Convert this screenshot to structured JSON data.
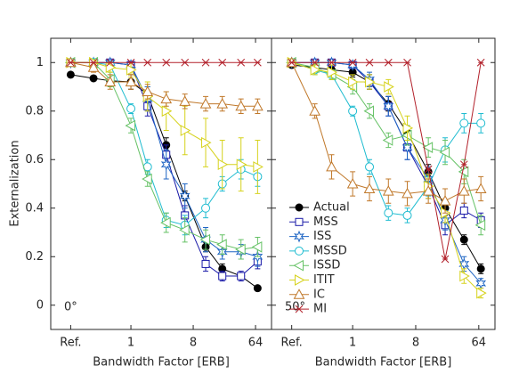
{
  "y_label": "Externalization",
  "chart_data": [
    {
      "type": "line",
      "xlabel": "Bandwidth Factor [ERB]",
      "annotation": "0°",
      "x": [
        -2.9,
        -1.8,
        -1,
        0,
        0.8,
        1.7,
        2.6,
        3.6,
        4.4,
        5.3,
        6.1
      ],
      "xlim": [
        -3.86,
        6.77
      ],
      "xticks": [
        {
          "value": -2.9,
          "label": "Ref."
        },
        {
          "value": 0,
          "label": "1"
        },
        {
          "value": 3,
          "label": "8"
        },
        {
          "value": 6,
          "label": "64"
        }
      ],
      "ylim": [
        -0.1,
        1.1
      ],
      "yticks": [
        0,
        0.2,
        0.4,
        0.6,
        0.8,
        1
      ],
      "series": [
        {
          "color": "#000000",
          "marker": "filled-circle",
          "values": [
            0.95,
            0.935,
            0.925,
            0.92,
            0.87,
            0.66,
            0.45,
            0.24,
            0.15,
            0.12,
            0.07
          ],
          "errors": [
            0.01,
            0.01,
            0.01,
            0.03,
            0.03,
            0.03,
            0.02,
            0.02,
            0.02,
            0.01,
            0.01
          ]
        },
        {
          "color": "#1a1aa8",
          "marker": "square",
          "values": [
            1,
            1,
            1,
            0.99,
            0.82,
            0.62,
            0.37,
            0.17,
            0.12,
            0.12,
            0.18
          ],
          "errors": [
            0,
            0,
            0.01,
            0.01,
            0.04,
            0.04,
            0.04,
            0.03,
            0.02,
            0.02,
            0.03
          ]
        },
        {
          "color": "#1f66c4",
          "marker": "star",
          "values": [
            1,
            1,
            1,
            0.99,
            0.85,
            0.58,
            0.45,
            0.27,
            0.22,
            0.22,
            0.2
          ],
          "errors": [
            0,
            0,
            0.01,
            0.01,
            0.05,
            0.06,
            0.05,
            0.05,
            0.03,
            0.03,
            0.04
          ]
        },
        {
          "color": "#1fbcd0",
          "marker": "circle",
          "values": [
            1,
            1,
            0.99,
            0.81,
            0.57,
            0.35,
            0.33,
            0.4,
            0.5,
            0.56,
            0.53
          ],
          "errors": [
            0,
            0,
            0.01,
            0.02,
            0.03,
            0.03,
            0.04,
            0.04,
            0.03,
            0.04,
            0.04
          ]
        },
        {
          "color": "#66c266",
          "marker": "left-triangle",
          "values": [
            1,
            1,
            0.93,
            0.74,
            0.52,
            0.34,
            0.31,
            0.27,
            0.25,
            0.23,
            0.24
          ],
          "errors": [
            0,
            0.01,
            0.03,
            0.03,
            0.03,
            0.04,
            0.05,
            0.04,
            0.04,
            0.04,
            0.04
          ]
        },
        {
          "color": "#d6d21c",
          "marker": "right-triangle",
          "values": [
            1,
            1,
            0.98,
            0.97,
            0.86,
            0.8,
            0.72,
            0.67,
            0.58,
            0.58,
            0.57
          ],
          "errors": [
            0,
            0.01,
            0.02,
            0.03,
            0.06,
            0.08,
            0.1,
            0.1,
            0.1,
            0.11,
            0.11
          ]
        },
        {
          "color": "#c0782a",
          "marker": "up-triangle",
          "values": [
            1,
            0.98,
            0.92,
            0.92,
            0.88,
            0.85,
            0.84,
            0.83,
            0.83,
            0.82,
            0.82
          ],
          "errors": [
            0.01,
            0.02,
            0.03,
            0.03,
            0.03,
            0.03,
            0.03,
            0.03,
            0.03,
            0.03,
            0.03
          ]
        },
        {
          "color": "#b2202a",
          "marker": "x",
          "values": [
            1,
            1,
            1,
            1,
            1,
            1,
            1,
            1,
            1,
            1,
            1
          ],
          "errors": [
            0,
            0,
            0,
            0,
            0,
            0,
            0,
            0,
            0,
            0,
            0
          ]
        }
      ]
    },
    {
      "type": "line",
      "xlabel": "Bandwidth Factor [ERB]",
      "annotation": "50°",
      "legend": "lower left",
      "x": [
        -2.9,
        -1.8,
        -1,
        0,
        0.8,
        1.7,
        2.6,
        3.6,
        4.4,
        5.3,
        6.1
      ],
      "xlim": [
        -3.86,
        6.77
      ],
      "xticks": [
        {
          "value": -2.9,
          "label": "Ref."
        },
        {
          "value": 0,
          "label": "1"
        },
        {
          "value": 3,
          "label": "8"
        },
        {
          "value": 6,
          "label": "64"
        }
      ],
      "ylim": [
        -0.1,
        1.1
      ],
      "yticks": [
        0,
        0.2,
        0.4,
        0.6,
        0.8,
        1
      ],
      "series": [
        {
          "name": "Actual",
          "color": "#000000",
          "marker": "filled-circle",
          "values": [
            0.99,
            0.98,
            0.97,
            0.96,
            0.92,
            0.83,
            0.71,
            0.55,
            0.4,
            0.27,
            0.15
          ],
          "errors": [
            0.01,
            0.01,
            0.01,
            0.02,
            0.03,
            0.03,
            0.03,
            0.03,
            0.03,
            0.02,
            0.02
          ]
        },
        {
          "name": "MSS",
          "color": "#1a1aa8",
          "marker": "square",
          "values": [
            1,
            1,
            1,
            0.99,
            0.92,
            0.82,
            0.65,
            0.49,
            0.33,
            0.39,
            0.35
          ],
          "errors": [
            0,
            0,
            0.01,
            0.01,
            0.03,
            0.04,
            0.05,
            0.05,
            0.04,
            0.03,
            0.03
          ]
        },
        {
          "name": "ISS",
          "color": "#1f66c4",
          "marker": "star",
          "values": [
            1,
            1,
            1,
            0.99,
            0.93,
            0.82,
            0.65,
            0.52,
            0.35,
            0.17,
            0.09
          ],
          "errors": [
            0,
            0,
            0.01,
            0.01,
            0.03,
            0.04,
            0.05,
            0.05,
            0.04,
            0.03,
            0.02
          ]
        },
        {
          "name": "MSSD",
          "color": "#1fbcd0",
          "marker": "circle",
          "values": [
            1,
            0.97,
            0.95,
            0.8,
            0.57,
            0.38,
            0.37,
            0.49,
            0.64,
            0.75,
            0.75
          ],
          "errors": [
            0,
            0.02,
            0.02,
            0.02,
            0.03,
            0.03,
            0.03,
            0.04,
            0.05,
            0.04,
            0.04
          ]
        },
        {
          "name": "ISSD",
          "color": "#66c266",
          "marker": "left-triangle",
          "values": [
            1,
            0.98,
            0.95,
            0.9,
            0.8,
            0.68,
            0.7,
            0.65,
            0.63,
            0.55,
            0.33
          ],
          "errors": [
            0,
            0.02,
            0.02,
            0.03,
            0.03,
            0.03,
            0.04,
            0.04,
            0.05,
            0.05,
            0.04
          ]
        },
        {
          "name": "ITIT",
          "color": "#d6d21c",
          "marker": "right-triangle",
          "values": [
            1,
            0.97,
            0.96,
            0.92,
            0.92,
            0.9,
            0.73,
            0.49,
            0.38,
            0.12,
            0.05
          ],
          "errors": [
            0,
            0.02,
            0.03,
            0.03,
            0.03,
            0.03,
            0.05,
            0.05,
            0.04,
            0.03,
            0.02
          ]
        },
        {
          "name": "IC",
          "color": "#c0782a",
          "marker": "up-triangle",
          "values": [
            1,
            0.8,
            0.57,
            0.5,
            0.48,
            0.47,
            0.46,
            0.47,
            0.43,
            0.47,
            0.48
          ],
          "errors": [
            0.01,
            0.03,
            0.05,
            0.05,
            0.05,
            0.05,
            0.05,
            0.05,
            0.05,
            0.05,
            0.05
          ]
        },
        {
          "name": "MI",
          "color": "#b2202a",
          "marker": "x",
          "values": [
            1,
            1,
            1,
            1,
            1,
            1,
            1,
            0.56,
            0.19,
            0.58,
            1
          ],
          "errors": [
            0,
            0,
            0,
            0,
            0,
            0,
            0,
            0,
            0,
            0,
            0
          ]
        }
      ]
    }
  ]
}
